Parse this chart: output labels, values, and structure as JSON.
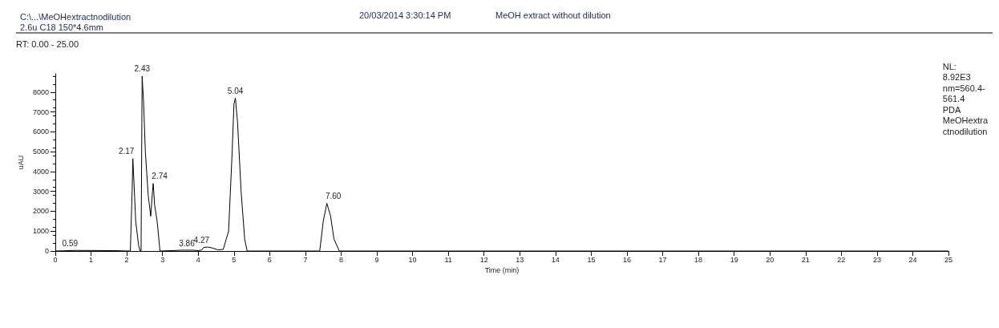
{
  "chart_data": {
    "type": "line",
    "title": "C:\\...\\MeOHextractnodilution",
    "subtitle": "2.6u C18 150*4.6mm",
    "xlabel": "Time (min)",
    "ylabel": "uAU",
    "x": [
      0,
      0.59,
      1.6,
      2.1,
      2.15,
      2.17,
      2.2,
      2.25,
      2.33,
      2.37,
      2.4,
      2.43,
      2.47,
      2.52,
      2.6,
      2.67,
      2.72,
      2.74,
      2.78,
      2.85,
      2.93,
      3.25,
      3.5,
      3.86,
      4.0,
      4.1,
      4.15,
      4.27,
      4.4,
      4.55,
      4.7,
      4.85,
      4.95,
      5.0,
      5.04,
      5.1,
      5.2,
      5.3,
      5.37,
      7.4,
      7.5,
      7.6,
      7.7,
      7.8,
      7.95,
      25
    ],
    "series": [
      {
        "color": "#000000",
        "values": [
          0,
          30,
          20,
          0,
          3000,
          4650,
          3500,
          1500,
          300,
          0,
          0,
          8800,
          7500,
          5000,
          2800,
          1750,
          3000,
          3400,
          2300,
          1500,
          0,
          20,
          40,
          40,
          20,
          50,
          180,
          200,
          150,
          60,
          80,
          1000,
          5000,
          7400,
          7700,
          6500,
          3000,
          600,
          0,
          0,
          1500,
          2400,
          1800,
          600,
          0,
          0
        ]
      }
    ],
    "xlim": [
      0,
      25
    ],
    "xticks": [
      0,
      1,
      2,
      3,
      4,
      5,
      6,
      7,
      8,
      9,
      10,
      11,
      12,
      13,
      14,
      15,
      16,
      17,
      18,
      19,
      20,
      21,
      22,
      23,
      24,
      25
    ],
    "ylim": [
      0,
      8920
    ],
    "yticks": [
      0,
      1000,
      2000,
      3000,
      4000,
      5000,
      6000,
      7000,
      8000
    ],
    "grid": false,
    "marker": "none",
    "line_style": "solid",
    "annotations": [
      "20/03/2014 3:30:14 PM",
      "MeOH extract without dilution",
      "RT: 0.00 - 25.00",
      "NL:\n8.92E3\nnm=560.4-\n561.4\nPDA\nMeOHextra\nctnodilution",
      {
        "text": "0.59",
        "x": 0.59,
        "y": 30
      },
      {
        "text": "2.17",
        "x": 2.17,
        "y": 4650
      },
      {
        "text": "2.43",
        "x": 2.43,
        "y": 8800
      },
      {
        "text": "2.74",
        "x": 2.74,
        "y": 3400
      },
      {
        "text": "3.86",
        "x": 3.86,
        "y": 40
      },
      {
        "text": "4.27",
        "x": 4.27,
        "y": 200
      },
      {
        "text": "5.04",
        "x": 5.04,
        "y": 7700
      },
      {
        "text": "7.60",
        "x": 7.6,
        "y": 2400
      }
    ]
  }
}
